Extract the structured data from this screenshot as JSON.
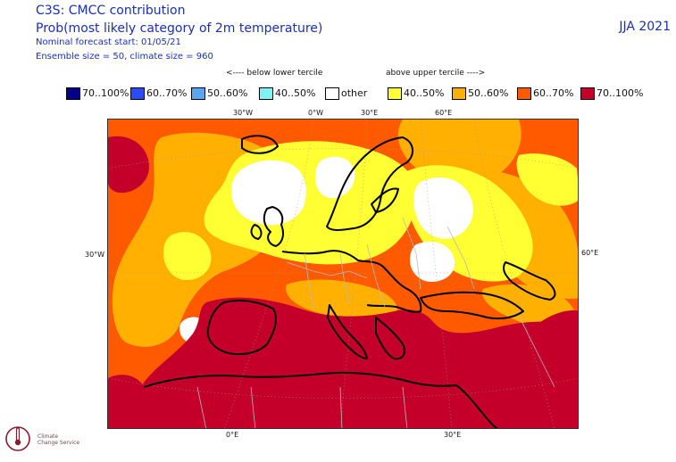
{
  "header": {
    "title": "C3S: CMCC contribution",
    "subtitle": "Prob(most likely category of 2m temperature)",
    "forecast_start": "Nominal forecast start: 01/05/21",
    "ensemble": "Ensemble size = 50, climate size = 960",
    "season": "JJA 2021"
  },
  "tercile": {
    "below": "<---- below lower tercile",
    "above": "above upper tercile ---->"
  },
  "legend": [
    {
      "label": "70..100%",
      "color": "#00008b"
    },
    {
      "label": "60..70%",
      "color": "#2a4cf4"
    },
    {
      "label": "50..60%",
      "color": "#5aa6f2"
    },
    {
      "label": "40..50%",
      "color": "#7ff3f3"
    },
    {
      "label": "other",
      "color": "#ffffff"
    },
    {
      "label": "40..50%",
      "color": "#ffff33"
    },
    {
      "label": "50..60%",
      "color": "#ffb000"
    },
    {
      "label": "60..70%",
      "color": "#ff5a00"
    },
    {
      "label": "70..100%",
      "color": "#c4002a"
    }
  ],
  "axes": {
    "top": [
      "30°W",
      "0°W",
      "30°E",
      "60°E"
    ],
    "bottom": [
      "0°E",
      "30°E"
    ],
    "left": "30°W",
    "right": "60°E"
  },
  "logo": {
    "line1": "Climate",
    "line2": "Change Service"
  }
}
